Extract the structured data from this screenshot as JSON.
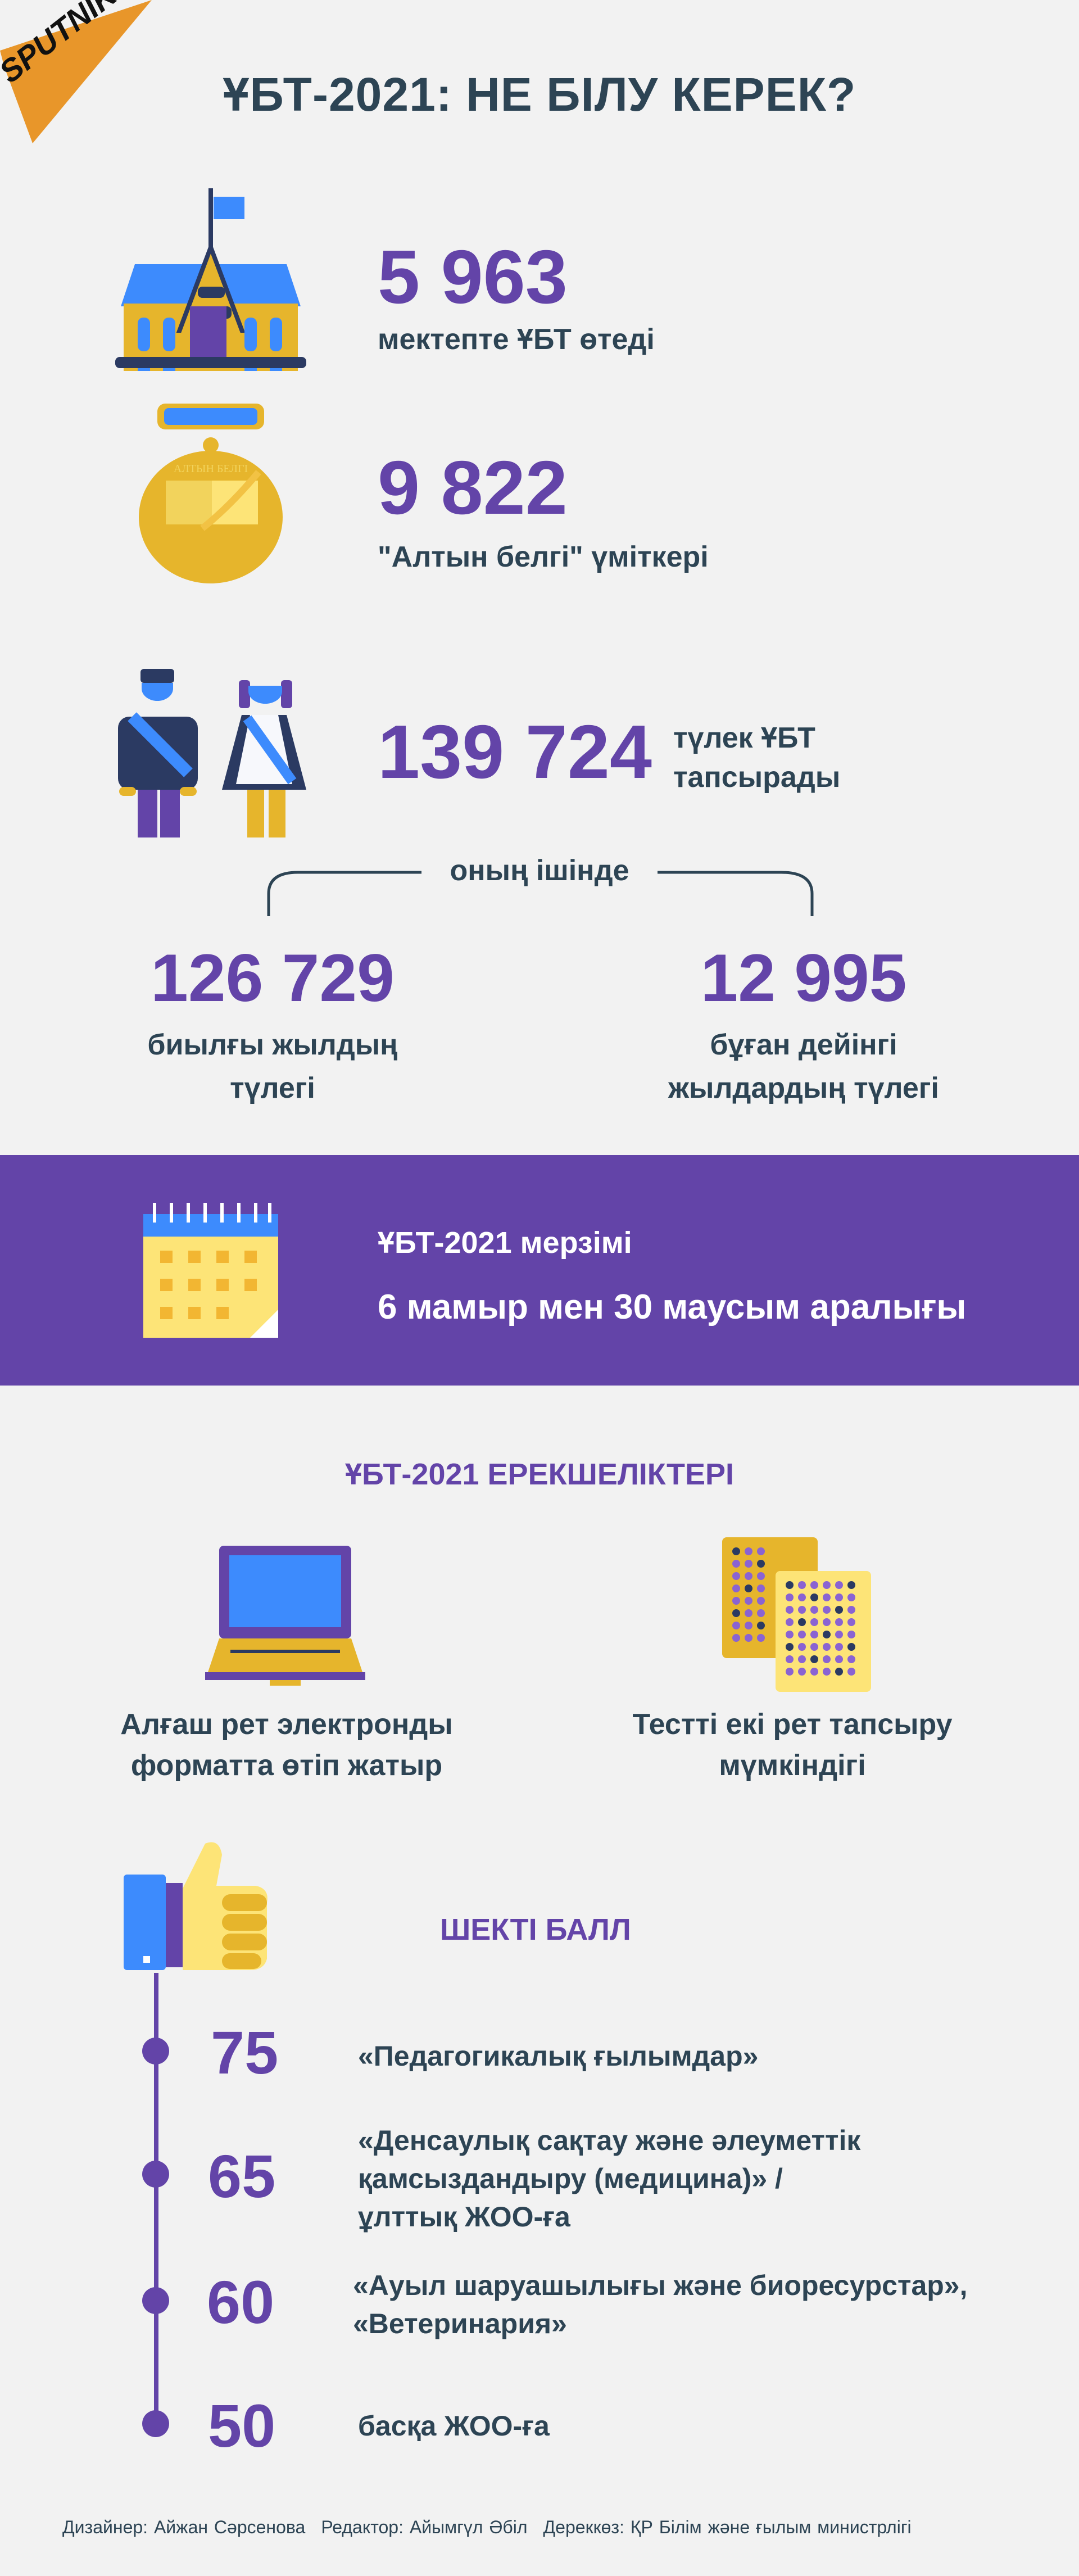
{
  "brand": {
    "logo_text": "SPUTNIK",
    "color": "#e8962a"
  },
  "header": {
    "title": "ҰБТ-2021: НЕ БІЛУ КЕРЕК?"
  },
  "colors": {
    "text": "#2d4454",
    "accent": "#6344a8",
    "blue": "#3d8bfd",
    "gold": "#e6b52c",
    "navy": "#2b3a62",
    "background": "#f2f2f2"
  },
  "stats": {
    "schools": {
      "value": "5 963",
      "caption": "мектепте ҰБТ өтеді",
      "icon": "school-icon"
    },
    "gold_medal": {
      "value": "9 822",
      "caption": "\"Алтын белгі\" үміткері",
      "icon": "medal-icon",
      "medal_text": "АЛТЫН БЕЛГІ"
    },
    "graduates": {
      "value": "139 724",
      "caption_line1": "түлек ҰБТ",
      "caption_line2": "тапсырады",
      "icon": "graduates-icon"
    },
    "including_label": "оның ішінде",
    "this_year": {
      "value": "126 729",
      "caption_line1": "биылғы жылдың",
      "caption_line2": "түлегі"
    },
    "previous_years": {
      "value": "12 995",
      "caption_line1": "бұған дейінгі",
      "caption_line2": "жылдардың түлегі"
    }
  },
  "deadline": {
    "label": "ҰБТ-2021 мерзімі",
    "dates": "6 мамыр мен 30 маусым аралығы",
    "icon": "calendar-icon"
  },
  "features": {
    "title": "ҰБТ-2021 ЕРЕКШЕЛІКТЕРІ",
    "items": [
      {
        "icon": "laptop-icon",
        "line1": "Алғаш рет электронды",
        "line2": "форматта өтіп жатыр"
      },
      {
        "icon": "answer-sheets-icon",
        "line1": "Тестті екі рет тапсыру",
        "line2": "мүмкіндігі"
      }
    ]
  },
  "threshold": {
    "title": "ШЕКТІ БАЛЛ",
    "icon": "thumbs-up-icon",
    "items": [
      {
        "score": "75",
        "lines": [
          "«Педагогикалық ғылымдар»"
        ]
      },
      {
        "score": "65",
        "lines": [
          "«Денсаулық сақтау және әлеуметтік",
          "қамсыздандыру (медицина)» /",
          "ұлттық ЖОО-ға"
        ]
      },
      {
        "score": "60",
        "lines": [
          "«Ауыл шаруашылығы және биоресурстар»,",
          "«Ветеринария»"
        ]
      },
      {
        "score": "50",
        "lines": [
          "басқа ЖОО-ға"
        ]
      }
    ]
  },
  "footer": {
    "designer": "Дизайнер: Айжан Сәрсенова",
    "editor": "Редактор: Айымгүл Әбіл",
    "source": "Дереккөз: ҚР Білім және ғылым министрлігі"
  }
}
